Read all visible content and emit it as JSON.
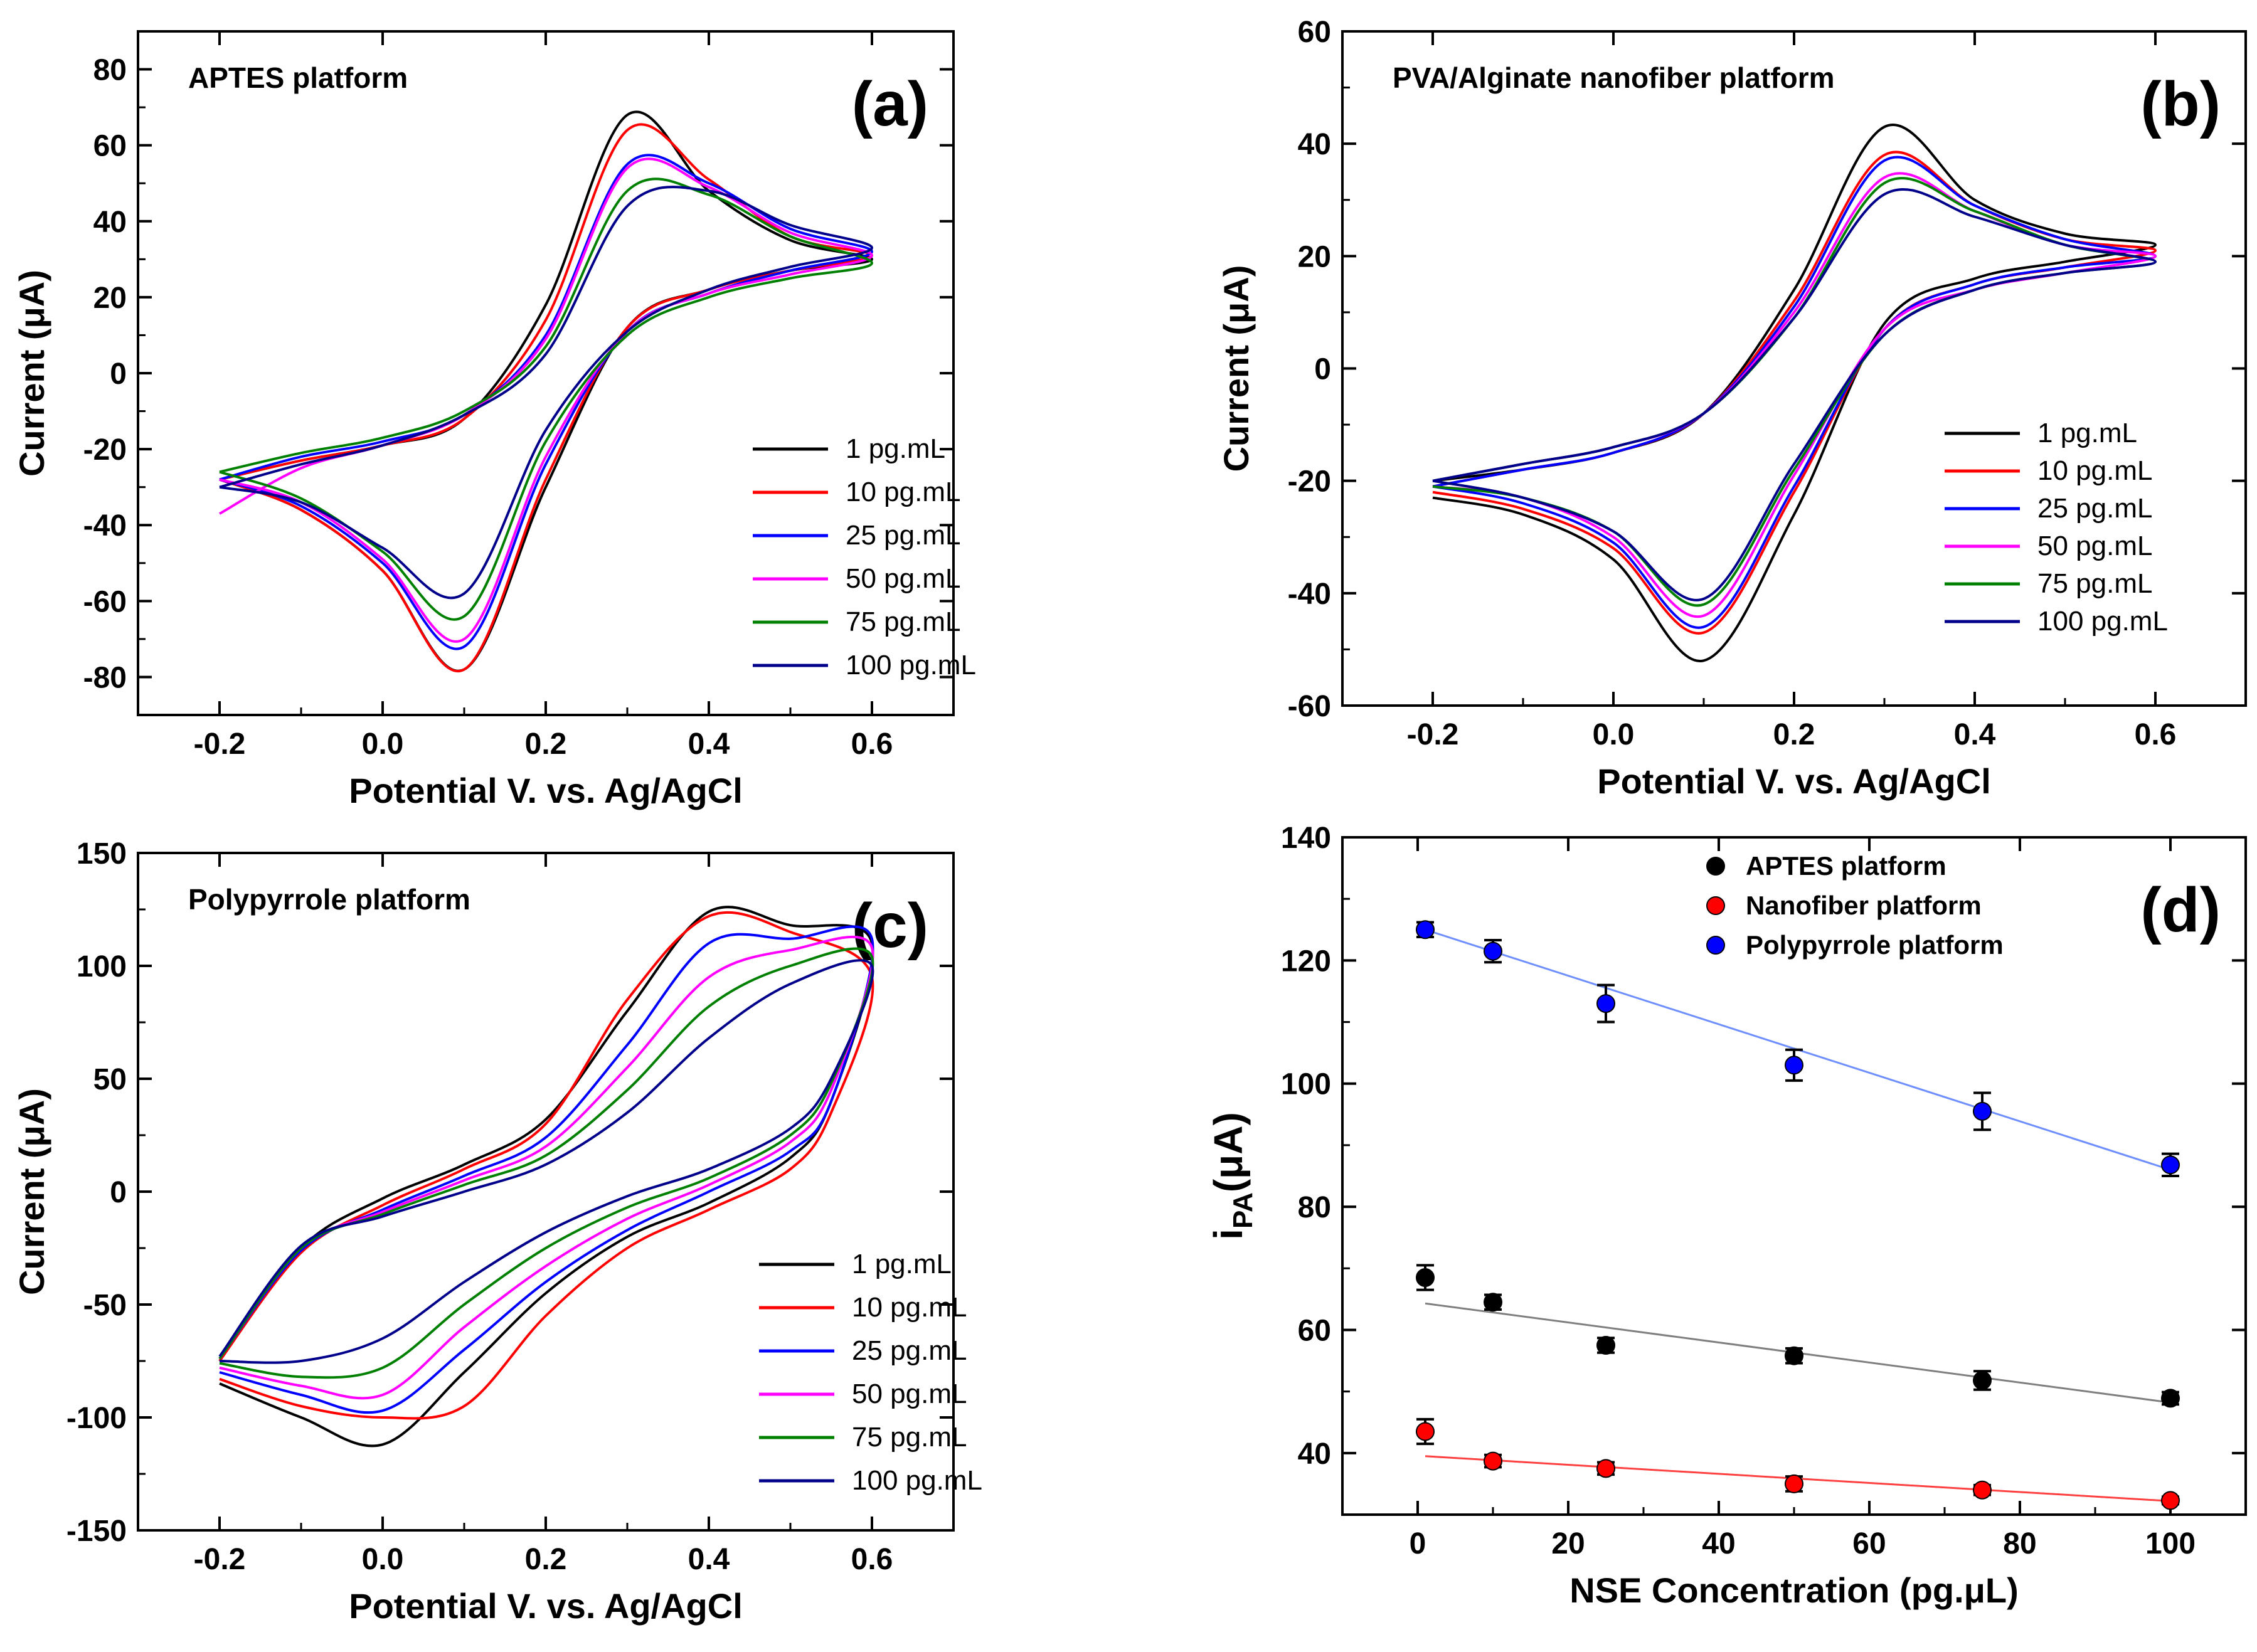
{
  "chart_data": [
    {
      "id": "a",
      "type": "line",
      "panel_label": "(a)",
      "title": "APTES platform",
      "xlabel": "Potential V. vs. Ag/AgCl",
      "ylabel": "Current (μA)",
      "xlim": [
        -0.3,
        0.7
      ],
      "ylim": [
        -90,
        90
      ],
      "xticks": [
        -0.2,
        0.0,
        0.2,
        0.4,
        0.6
      ],
      "xtick_labels": [
        "-0.2",
        "0.0",
        "0.2",
        "0.4",
        "0.6"
      ],
      "yticks": [
        -80,
        -60,
        -40,
        -20,
        0,
        20,
        40,
        60,
        80
      ],
      "ytick_labels": [
        "-80",
        "-60",
        "-40",
        "-20",
        "0",
        "20",
        "40",
        "60",
        "80"
      ],
      "legend_position": "lower-right",
      "series": [
        {
          "name": "1 pg.mL",
          "color": "#000000",
          "x": [
            -0.2,
            -0.1,
            0.0,
            0.1,
            0.2,
            0.3,
            0.4,
            0.5,
            0.6,
            0.5,
            0.4,
            0.3,
            0.2,
            0.1,
            0.0,
            -0.1,
            -0.2
          ],
          "y": [
            -28,
            -23,
            -19,
            -12,
            18,
            68,
            48,
            35,
            30,
            27,
            22,
            12,
            -30,
            -78,
            -52,
            -36,
            -28
          ]
        },
        {
          "name": "10 pg.mL",
          "color": "#ff0000",
          "x": [
            -0.2,
            -0.1,
            0.0,
            0.1,
            0.2,
            0.3,
            0.4,
            0.5,
            0.6,
            0.5,
            0.4,
            0.3,
            0.2,
            0.1,
            0.0,
            -0.1,
            -0.2
          ],
          "y": [
            -28,
            -23,
            -19,
            -12,
            14,
            64,
            51,
            36,
            31,
            27,
            22,
            12,
            -28,
            -78,
            -52,
            -36,
            -28
          ]
        },
        {
          "name": "25 pg.mL",
          "color": "#0000ff",
          "x": [
            -0.2,
            -0.1,
            0.0,
            0.1,
            0.2,
            0.3,
            0.4,
            0.5,
            0.6,
            0.5,
            0.4,
            0.3,
            0.2,
            0.1,
            0.0,
            -0.1,
            -0.2
          ],
          "y": [
            -28,
            -22,
            -18,
            -11,
            10,
            55,
            50,
            38,
            32,
            27,
            21,
            11,
            -24,
            -72,
            -50,
            -35,
            -28
          ]
        },
        {
          "name": "50 pg.mL",
          "color": "#ff00ff",
          "x": [
            -0.2,
            -0.1,
            0.0,
            0.1,
            0.2,
            0.3,
            0.4,
            0.5,
            0.6,
            0.5,
            0.4,
            0.3,
            0.2,
            0.1,
            0.0,
            -0.1,
            -0.2
          ],
          "y": [
            -37,
            -25,
            -19,
            -11,
            9,
            54,
            49,
            37,
            31,
            26,
            21,
            11,
            -22,
            -70,
            -49,
            -34,
            -28
          ]
        },
        {
          "name": "75 pg.mL",
          "color": "#008000",
          "x": [
            -0.2,
            -0.1,
            0.0,
            0.1,
            0.2,
            0.3,
            0.4,
            0.5,
            0.6,
            0.5,
            0.4,
            0.3,
            0.2,
            0.1,
            0.0,
            -0.1,
            -0.2
          ],
          "y": [
            -26,
            -21,
            -17,
            -10,
            7,
            48,
            47,
            36,
            29,
            25,
            20,
            10,
            -18,
            -64,
            -47,
            -33,
            -26
          ]
        },
        {
          "name": "100 pg.mL",
          "color": "#00008b",
          "x": [
            -0.2,
            -0.1,
            0.0,
            0.1,
            0.2,
            0.3,
            0.4,
            0.5,
            0.6,
            0.5,
            0.4,
            0.3,
            0.2,
            0.1,
            0.0,
            -0.1,
            -0.2
          ],
          "y": [
            -30,
            -24,
            -19,
            -11,
            5,
            44,
            48,
            39,
            33,
            28,
            22,
            11,
            -15,
            -58,
            -46,
            -34,
            -30
          ]
        }
      ]
    },
    {
      "id": "b",
      "type": "line",
      "panel_label": "(b)",
      "title": "PVA/Alginate nanofiber platform",
      "xlabel": "Potential V. vs. Ag/AgCl",
      "ylabel": "Current (μA)",
      "xlim": [
        -0.3,
        0.7
      ],
      "ylim": [
        -60,
        60
      ],
      "xticks": [
        -0.2,
        0.0,
        0.2,
        0.4,
        0.6
      ],
      "xtick_labels": [
        "-0.2",
        "0.0",
        "0.2",
        "0.4",
        "0.6"
      ],
      "yticks": [
        -60,
        -40,
        -20,
        0,
        20,
        40,
        60
      ],
      "ytick_labels": [
        "-60",
        "-40",
        "-20",
        "0",
        "20",
        "40",
        "60"
      ],
      "legend_position": "lower-right",
      "series": [
        {
          "name": "1 pg.mL",
          "color": "#000000",
          "x": [
            -0.2,
            -0.1,
            0.0,
            0.1,
            0.2,
            0.3,
            0.4,
            0.5,
            0.6,
            0.5,
            0.4,
            0.3,
            0.2,
            0.1,
            0.0,
            -0.1,
            -0.2
          ],
          "y": [
            -20,
            -18,
            -15,
            -8,
            14,
            43,
            30,
            24,
            22,
            19,
            16,
            8,
            -26,
            -52,
            -34,
            -26,
            -23
          ]
        },
        {
          "name": "10 pg.mL",
          "color": "#ff0000",
          "x": [
            -0.2,
            -0.1,
            0.0,
            0.1,
            0.2,
            0.3,
            0.4,
            0.5,
            0.6,
            0.5,
            0.4,
            0.3,
            0.2,
            0.1,
            0.0,
            -0.1,
            -0.2
          ],
          "y": [
            -21,
            -18,
            -15,
            -8,
            12,
            38,
            29,
            23,
            21,
            18,
            15,
            7,
            -22,
            -47,
            -32,
            -25,
            -22
          ]
        },
        {
          "name": "25 pg.mL",
          "color": "#0000ff",
          "x": [
            -0.2,
            -0.1,
            0.0,
            0.1,
            0.2,
            0.3,
            0.4,
            0.5,
            0.6,
            0.5,
            0.4,
            0.3,
            0.2,
            0.1,
            0.0,
            -0.1,
            -0.2
          ],
          "y": [
            -21,
            -18,
            -15,
            -8,
            11,
            37,
            29,
            23,
            20,
            18,
            15,
            7,
            -21,
            -46,
            -31,
            -24,
            -21
          ]
        },
        {
          "name": "50 pg.mL",
          "color": "#ff00ff",
          "x": [
            -0.2,
            -0.1,
            0.0,
            0.1,
            0.2,
            0.3,
            0.4,
            0.5,
            0.6,
            0.5,
            0.4,
            0.3,
            0.2,
            0.1,
            0.0,
            -0.1,
            -0.2
          ],
          "y": [
            -20,
            -17,
            -14,
            -8,
            10,
            34,
            28,
            22,
            20,
            17,
            14,
            7,
            -19,
            -44,
            -30,
            -23,
            -21
          ]
        },
        {
          "name": "75 pg.mL",
          "color": "#008000",
          "x": [
            -0.2,
            -0.1,
            0.0,
            0.1,
            0.2,
            0.3,
            0.4,
            0.5,
            0.6,
            0.5,
            0.4,
            0.3,
            0.2,
            0.1,
            0.0,
            -0.1,
            -0.2
          ],
          "y": [
            -20,
            -17,
            -14,
            -8,
            9,
            33,
            28,
            22,
            19,
            17,
            14,
            6,
            -18,
            -42,
            -29,
            -23,
            -21
          ]
        },
        {
          "name": "100 pg.mL",
          "color": "#00008b",
          "x": [
            -0.2,
            -0.1,
            0.0,
            0.1,
            0.2,
            0.3,
            0.4,
            0.5,
            0.6,
            0.5,
            0.4,
            0.3,
            0.2,
            0.1,
            0.0,
            -0.1,
            -0.2
          ],
          "y": [
            -20,
            -17,
            -14,
            -8,
            9,
            31,
            27,
            22,
            19,
            17,
            14,
            6,
            -17,
            -41,
            -29,
            -23,
            -20
          ]
        }
      ]
    },
    {
      "id": "c",
      "type": "line",
      "panel_label": "(c)",
      "title": "Polypyrrole platform",
      "xlabel": "Potential V. vs. Ag/AgCl",
      "ylabel": "Current (μA)",
      "xlim": [
        -0.3,
        0.7
      ],
      "ylim": [
        -150,
        150
      ],
      "xticks": [
        -0.2,
        0.0,
        0.2,
        0.4,
        0.6
      ],
      "xtick_labels": [
        "-0.2",
        "0.0",
        "0.2",
        "0.4",
        "0.6"
      ],
      "yticks": [
        -150,
        -100,
        -50,
        0,
        50,
        100,
        150
      ],
      "ytick_labels": [
        "-150",
        "-100",
        "-50",
        "0",
        "50",
        "100",
        "150"
      ],
      "legend_position": "lower-right",
      "series": [
        {
          "name": "1 pg.mL",
          "color": "#000000",
          "x": [
            -0.2,
            -0.1,
            0.0,
            0.1,
            0.2,
            0.3,
            0.4,
            0.5,
            0.6,
            0.55,
            0.5,
            0.4,
            0.3,
            0.2,
            0.1,
            0.0,
            -0.1,
            -0.2
          ],
          "y": [
            -75,
            -25,
            -3,
            12,
            32,
            80,
            124,
            118,
            110,
            40,
            15,
            -5,
            -20,
            -45,
            -80,
            -112,
            -100,
            -85
          ]
        },
        {
          "name": "10 pg.mL",
          "color": "#ff0000",
          "x": [
            -0.2,
            -0.1,
            0.0,
            0.1,
            0.2,
            0.3,
            0.4,
            0.5,
            0.6,
            0.55,
            0.5,
            0.4,
            0.3,
            0.2,
            0.1,
            0.0,
            -0.1,
            -0.2
          ],
          "y": [
            -75,
            -27,
            -6,
            10,
            30,
            85,
            122,
            115,
            95,
            35,
            10,
            -8,
            -25,
            -55,
            -95,
            -100,
            -95,
            -83
          ]
        },
        {
          "name": "25 pg.mL",
          "color": "#0000ff",
          "x": [
            -0.2,
            -0.1,
            0.0,
            0.1,
            0.2,
            0.3,
            0.4,
            0.5,
            0.6,
            0.55,
            0.5,
            0.4,
            0.3,
            0.2,
            0.1,
            0.0,
            -0.1,
            -0.2
          ],
          "y": [
            -74,
            -26,
            -8,
            7,
            24,
            65,
            110,
            112,
            112,
            40,
            18,
            0,
            -17,
            -40,
            -70,
            -97,
            -90,
            -80
          ]
        },
        {
          "name": "50 pg.mL",
          "color": "#ff00ff",
          "x": [
            -0.2,
            -0.1,
            0.0,
            0.1,
            0.2,
            0.3,
            0.4,
            0.5,
            0.6,
            0.55,
            0.5,
            0.4,
            0.3,
            0.2,
            0.1,
            0.0,
            -0.1,
            -0.2
          ],
          "y": [
            -74,
            -25,
            -9,
            5,
            20,
            55,
            95,
            107,
            108,
            45,
            22,
            3,
            -12,
            -33,
            -60,
            -90,
            -86,
            -78
          ]
        },
        {
          "name": "75 pg.mL",
          "color": "#008000",
          "x": [
            -0.2,
            -0.1,
            0.0,
            0.1,
            0.2,
            0.3,
            0.4,
            0.5,
            0.6,
            0.55,
            0.5,
            0.4,
            0.3,
            0.2,
            0.1,
            0.0,
            -0.1,
            -0.2
          ],
          "y": [
            -74,
            -25,
            -10,
            3,
            16,
            45,
            82,
            100,
            104,
            48,
            25,
            6,
            -7,
            -25,
            -50,
            -78,
            -82,
            -76
          ]
        },
        {
          "name": "100 pg.mL",
          "color": "#00008b",
          "x": [
            -0.2,
            -0.1,
            0.0,
            0.1,
            0.2,
            0.3,
            0.4,
            0.5,
            0.6,
            0.55,
            0.5,
            0.4,
            0.3,
            0.2,
            0.1,
            0.0,
            -0.1,
            -0.2
          ],
          "y": [
            -73,
            -24,
            -11,
            0,
            12,
            35,
            68,
            92,
            100,
            50,
            28,
            10,
            -2,
            -18,
            -40,
            -65,
            -75,
            -75
          ]
        }
      ]
    },
    {
      "id": "d",
      "type": "scatter",
      "panel_label": "(d)",
      "xlabel": "NSE Concentration (pg.μL)",
      "ylabel_main": "i",
      "ylabel_sub": "PA",
      "ylabel_rest": "(μA)",
      "xlim": [
        -10,
        110
      ],
      "ylim": [
        30,
        140
      ],
      "xticks": [
        0,
        20,
        40,
        60,
        80,
        100
      ],
      "xtick_labels": [
        "0",
        "20",
        "40",
        "60",
        "80",
        "100"
      ],
      "yticks": [
        40,
        60,
        80,
        100,
        120,
        140
      ],
      "ytick_labels": [
        "40",
        "60",
        "80",
        "100",
        "120",
        "140"
      ],
      "legend_position": "top-center",
      "series": [
        {
          "name": "APTES platform",
          "color": "#000000",
          "line_color": "#7f7f7f",
          "x": [
            1,
            10,
            25,
            50,
            75,
            100
          ],
          "y": [
            68.5,
            64.5,
            57.5,
            55.8,
            51.8,
            48.9
          ],
          "err": [
            2.0,
            1.2,
            1.2,
            1.2,
            1.5,
            1.0
          ],
          "fit": [
            [
              1,
              64.3
            ],
            [
              100,
              48.2
            ]
          ]
        },
        {
          "name": "Nanofiber platform",
          "color": "#ff0000",
          "line_color": "#ff4040",
          "x": [
            1,
            10,
            25,
            50,
            75,
            100
          ],
          "y": [
            43.5,
            38.7,
            37.5,
            35.0,
            34.0,
            32.3
          ],
          "err": [
            2.0,
            1.0,
            1.0,
            1.2,
            0.8,
            0.6
          ],
          "fit": [
            [
              1,
              39.5
            ],
            [
              100,
              32.2
            ]
          ]
        },
        {
          "name": "Polypyrrole platform",
          "color": "#0000ff",
          "line_color": "#6f8fff",
          "x": [
            1,
            10,
            25,
            50,
            75,
            100
          ],
          "y": [
            125.0,
            121.5,
            113.0,
            103.0,
            95.5,
            86.8
          ],
          "err": [
            1.2,
            1.8,
            3.0,
            2.5,
            3.0,
            1.8
          ],
          "fit": [
            [
              1,
              125.0
            ],
            [
              100,
              86.0
            ]
          ]
        }
      ]
    }
  ]
}
